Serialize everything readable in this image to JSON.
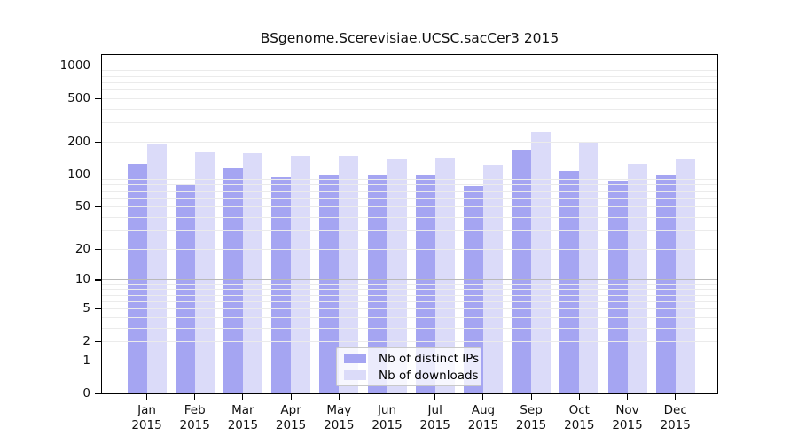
{
  "chart_data": {
    "type": "bar",
    "title": "BSgenome.Scerevisiae.UCSC.sacCer3 2015",
    "categories": [
      "Jan 2015",
      "Feb 2015",
      "Mar 2015",
      "Apr 2015",
      "May 2015",
      "Jun 2015",
      "Jul 2015",
      "Aug 2015",
      "Sep 2015",
      "Oct 2015",
      "Nov 2015",
      "Dec 2015"
    ],
    "series": [
      {
        "name": "Nb of distinct IPs",
        "color": "#a5a5f2",
        "values": [
          126,
          80,
          115,
          95,
          99,
          98,
          100,
          78,
          170,
          109,
          88,
          101
        ]
      },
      {
        "name": "Nb of downloads",
        "color": "#dbdbf9",
        "values": [
          190,
          160,
          157,
          148,
          150,
          139,
          144,
          124,
          245,
          200,
          125,
          140
        ]
      }
    ],
    "y_axis": {
      "scale": "log1p",
      "tick_values": [
        0,
        1,
        2,
        5,
        10,
        20,
        50,
        100,
        200,
        500,
        1000
      ],
      "tick_labels": [
        "0",
        "1",
        "2",
        "5",
        "10",
        "20",
        "50",
        "100",
        "200",
        "500",
        "1000"
      ],
      "ylim": [
        0,
        1250
      ]
    },
    "grid": "horizontal minor lines 2-9 per decade, darker lines at 1/10/100/1000, drawn over bars",
    "legend_position": "inside-bottom-center"
  },
  "colors": {
    "background": "#ffffff",
    "axis": "#000000",
    "grid_minor": "#ebebeb",
    "grid_major": "#b9b9b9"
  }
}
